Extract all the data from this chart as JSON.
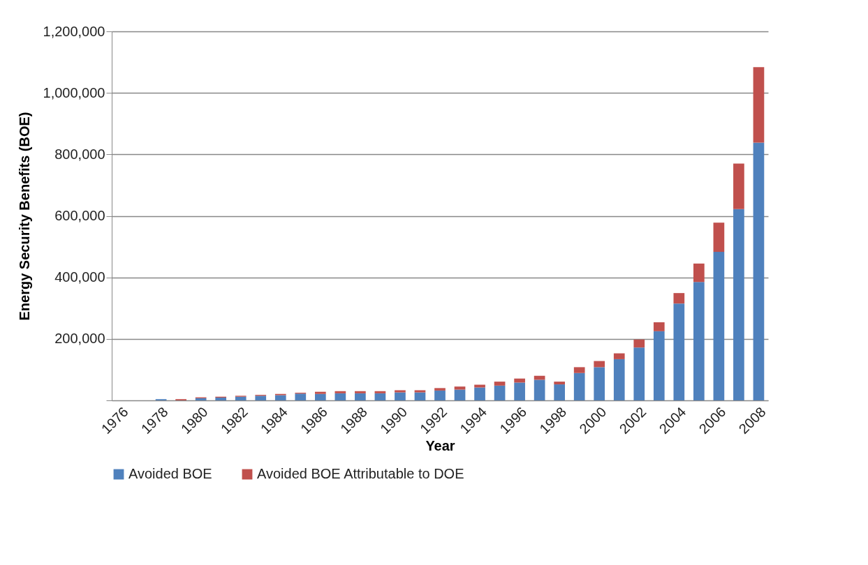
{
  "chart_data": {
    "type": "bar",
    "stacked": true,
    "xlabel": "Year",
    "ylabel": "Energy Security Benefits (BOE)",
    "categories": [
      "1976",
      null,
      "1978",
      null,
      "1980",
      null,
      "1982",
      null,
      "1984",
      null,
      "1986",
      null,
      "1988",
      null,
      "1990",
      null,
      "1992",
      null,
      "1994",
      null,
      "1996",
      null,
      "1998",
      null,
      "2000",
      null,
      "2002",
      null,
      "2004",
      null,
      "2006",
      null,
      "2008"
    ],
    "series": [
      {
        "name": "Avoided BOE",
        "color": "#4f81bd",
        "values": [
          null,
          null,
          4000,
          null,
          7000,
          9000,
          12000,
          15000,
          17000,
          22000,
          21000,
          23000,
          23000,
          23000,
          26000,
          26000,
          32000,
          35000,
          42000,
          48000,
          58000,
          67000,
          52000,
          89000,
          108000,
          134000,
          172000,
          225000,
          315000,
          385000,
          483000,
          622000,
          838000
        ]
      },
      {
        "name": "Avoided BOE Attributable to DOE",
        "color": "#c0504d",
        "values": [
          null,
          null,
          null,
          4000,
          3000,
          3000,
          3000,
          3000,
          4000,
          3000,
          7000,
          7000,
          7000,
          7000,
          7000,
          7000,
          8000,
          10000,
          9000,
          13000,
          13000,
          13000,
          9000,
          19000,
          20000,
          19000,
          26000,
          29000,
          34000,
          60000,
          95000,
          148000,
          246000
        ]
      }
    ],
    "ylim": [
      0,
      1200000
    ],
    "yticks": [
      {
        "value": 0,
        "label": null
      },
      {
        "value": 200000,
        "label": "200,000"
      },
      {
        "value": 400000,
        "label": "400,000"
      },
      {
        "value": 600000,
        "label": "600,000"
      },
      {
        "value": 800000,
        "label": "800,000"
      },
      {
        "value": 1000000,
        "label": "1,000,000"
      },
      {
        "value": 1200000,
        "label": "1,200,000"
      }
    ],
    "grid": "y",
    "legend": "bottom"
  }
}
